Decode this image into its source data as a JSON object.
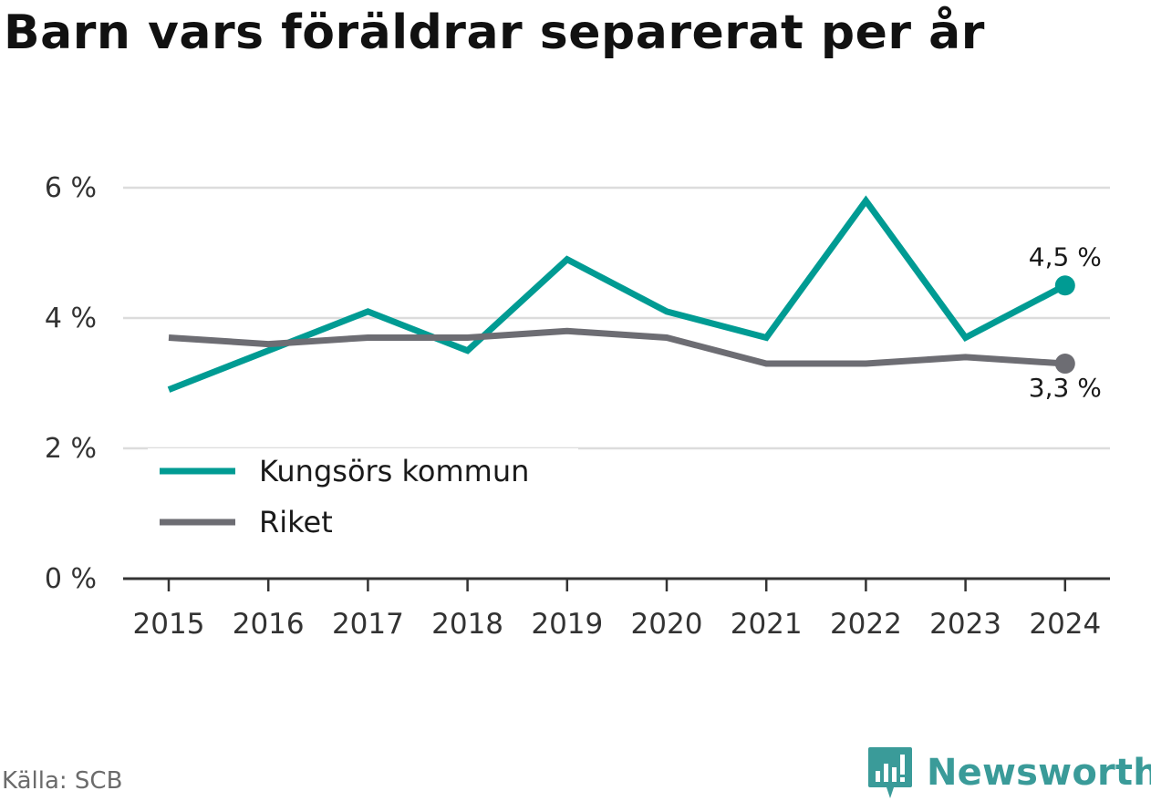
{
  "title": "Barn vars föräldrar separerat per år",
  "source": "Källa: SCB",
  "brand": {
    "name": "Newsworthy",
    "icon": "newsworthy-logo-icon"
  },
  "colors": {
    "kungsor": "#009b93",
    "riket": "#6d6d73",
    "grid": "#dcdcdc",
    "axis": "#333333",
    "brand": "#3a9b99"
  },
  "chart_data": {
    "type": "line",
    "x": [
      "2015",
      "2016",
      "2017",
      "2018",
      "2019",
      "2020",
      "2021",
      "2022",
      "2023",
      "2024"
    ],
    "y_ticks": [
      {
        "value": 0,
        "label": "0 %"
      },
      {
        "value": 2,
        "label": "2 %"
      },
      {
        "value": 4,
        "label": "4 %"
      },
      {
        "value": 6,
        "label": "6 %"
      }
    ],
    "ylim": [
      0,
      6
    ],
    "grid": true,
    "legend_position": "bottom-left",
    "series": [
      {
        "name": "Kungsörs kommun",
        "color": "#009b93",
        "values": [
          2.9,
          3.5,
          4.1,
          3.5,
          4.9,
          4.1,
          3.7,
          5.8,
          3.7,
          4.5
        ],
        "end_label": "4,5 %"
      },
      {
        "name": "Riket",
        "color": "#6d6d73",
        "values": [
          3.7,
          3.6,
          3.7,
          3.7,
          3.8,
          3.7,
          3.3,
          3.3,
          3.4,
          3.3
        ],
        "end_label": "3,3 %"
      }
    ]
  }
}
